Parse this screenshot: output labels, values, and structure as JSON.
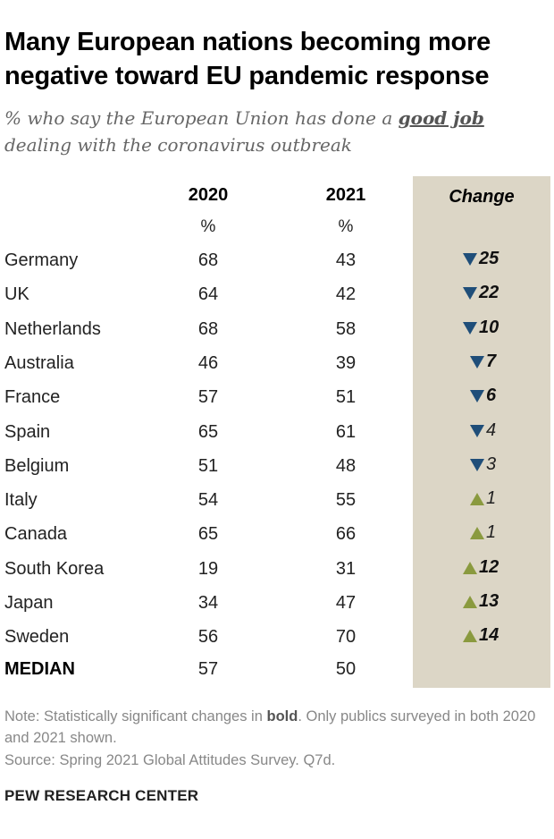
{
  "title": "Many European nations becoming more negative toward EU pandemic response",
  "subtitle": {
    "before": "% who say the European Union has done a ",
    "emphasis": "good job",
    "after": " dealing with the coronavirus outbreak"
  },
  "columns": {
    "col2020": "2020",
    "col2021": "2021",
    "change": "Change",
    "unit": "%"
  },
  "colors": {
    "decrease": "#1f4e79",
    "increase": "#8a9a3f",
    "change_background": "#dcd6c6"
  },
  "chart_data": {
    "type": "table",
    "title": "Many European nations becoming more negative toward EU pandemic response",
    "columns": [
      "2020",
      "2021",
      "Change"
    ],
    "rows": [
      {
        "country": "Germany",
        "v2020": "68",
        "v2021": "43",
        "change": "25",
        "direction": "down",
        "significant": true
      },
      {
        "country": "UK",
        "v2020": "64",
        "v2021": "42",
        "change": "22",
        "direction": "down",
        "significant": true
      },
      {
        "country": "Netherlands",
        "v2020": "68",
        "v2021": "58",
        "change": "10",
        "direction": "down",
        "significant": true
      },
      {
        "country": "Australia",
        "v2020": "46",
        "v2021": "39",
        "change": "7",
        "direction": "down",
        "significant": true
      },
      {
        "country": "France",
        "v2020": "57",
        "v2021": "51",
        "change": "6",
        "direction": "down",
        "significant": true
      },
      {
        "country": "Spain",
        "v2020": "65",
        "v2021": "61",
        "change": "4",
        "direction": "down",
        "significant": false
      },
      {
        "country": "Belgium",
        "v2020": "51",
        "v2021": "48",
        "change": "3",
        "direction": "down",
        "significant": false
      },
      {
        "country": "Italy",
        "v2020": "54",
        "v2021": "55",
        "change": "1",
        "direction": "up",
        "significant": false
      },
      {
        "country": "Canada",
        "v2020": "65",
        "v2021": "66",
        "change": "1",
        "direction": "up",
        "significant": false
      },
      {
        "country": "South Korea",
        "v2020": "19",
        "v2021": "31",
        "change": "12",
        "direction": "up",
        "significant": true
      },
      {
        "country": "Japan",
        "v2020": "34",
        "v2021": "47",
        "change": "13",
        "direction": "up",
        "significant": true
      },
      {
        "country": "Sweden",
        "v2020": "56",
        "v2021": "70",
        "change": "14",
        "direction": "up",
        "significant": true
      }
    ],
    "median": {
      "label": "MEDIAN",
      "v2020": "57",
      "v2021": "50"
    }
  },
  "note": {
    "before": "Note: Statistically significant changes in ",
    "bold": "bold",
    "after": ". Only publics surveyed in both 2020 and 2021 shown."
  },
  "source": "Source: Spring 2021 Global Attitudes Survey. Q7d.",
  "brand": "PEW RESEARCH CENTER"
}
